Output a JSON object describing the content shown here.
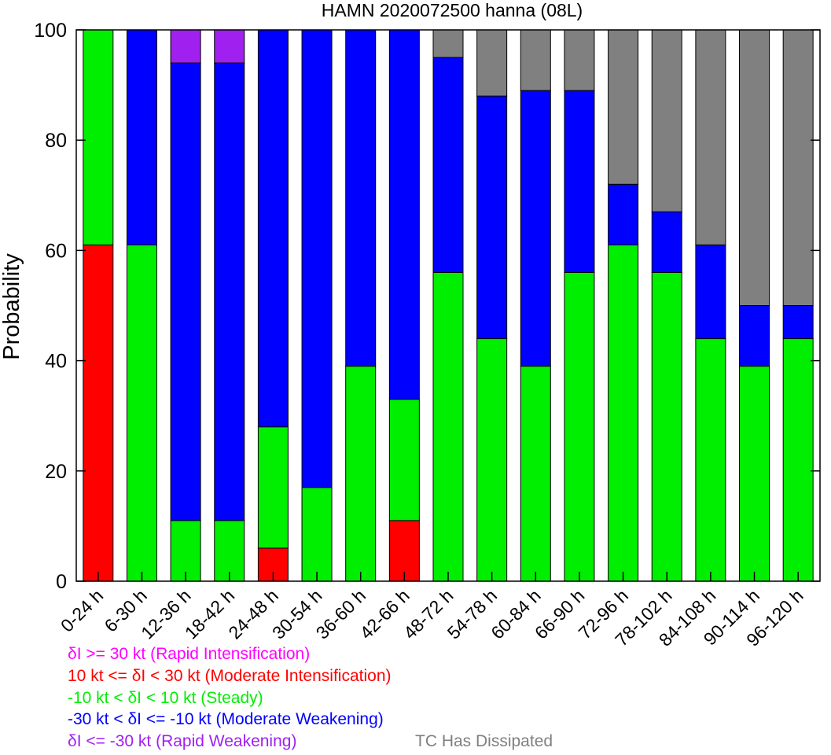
{
  "chart_data": {
    "type": "bar",
    "stacked": true,
    "title": "HAMN 2020072500 hanna (08L)",
    "xlabel": "",
    "ylabel": "Probability",
    "ylim": [
      0,
      100
    ],
    "yticks": [
      0,
      20,
      40,
      60,
      80,
      100
    ],
    "grid": false,
    "categories": [
      "0-24 h",
      "6-30 h",
      "12-36 h",
      "18-42 h",
      "24-48 h",
      "30-54 h",
      "36-60 h",
      "42-66 h",
      "48-72 h",
      "54-78 h",
      "60-84 h",
      "66-90 h",
      "72-96 h",
      "78-102 h",
      "84-108 h",
      "90-114 h",
      "96-120 h"
    ],
    "series": [
      {
        "name": "δI >= 30 kt (Rapid Intensification)",
        "color": "#ff00ff",
        "values": [
          0,
          0,
          0,
          0,
          0,
          0,
          0,
          0,
          0,
          0,
          0,
          0,
          0,
          0,
          0,
          0,
          0
        ]
      },
      {
        "name": "10 kt <= δI < 30 kt (Moderate Intensification)",
        "color": "#ff0000",
        "values": [
          61,
          0,
          0,
          0,
          6,
          0,
          0,
          11,
          0,
          0,
          0,
          0,
          0,
          0,
          0,
          0,
          0
        ]
      },
      {
        "name": "-10 kt < δI < 10 kt (Steady)",
        "color": "#00ee00",
        "values": [
          39,
          61,
          11,
          11,
          22,
          17,
          39,
          22,
          56,
          44,
          39,
          56,
          61,
          56,
          44,
          39,
          44
        ]
      },
      {
        "name": "-30 kt < δI <= -10 kt (Moderate Weakening)",
        "color": "#0000ff",
        "values": [
          0,
          39,
          83,
          83,
          72,
          83,
          61,
          67,
          39,
          44,
          50,
          33,
          11,
          11,
          17,
          11,
          6
        ]
      },
      {
        "name": "δI <= -30 kt (Rapid Weakening)",
        "color": "#a020f0",
        "values": [
          0,
          0,
          6,
          6,
          0,
          0,
          0,
          0,
          0,
          0,
          0,
          0,
          0,
          0,
          0,
          0,
          0
        ]
      },
      {
        "name": "TC Has Dissipated",
        "color": "#808080",
        "values": [
          0,
          0,
          0,
          0,
          0,
          0,
          0,
          0,
          5,
          12,
          11,
          11,
          28,
          33,
          39,
          50,
          50
        ]
      }
    ]
  }
}
